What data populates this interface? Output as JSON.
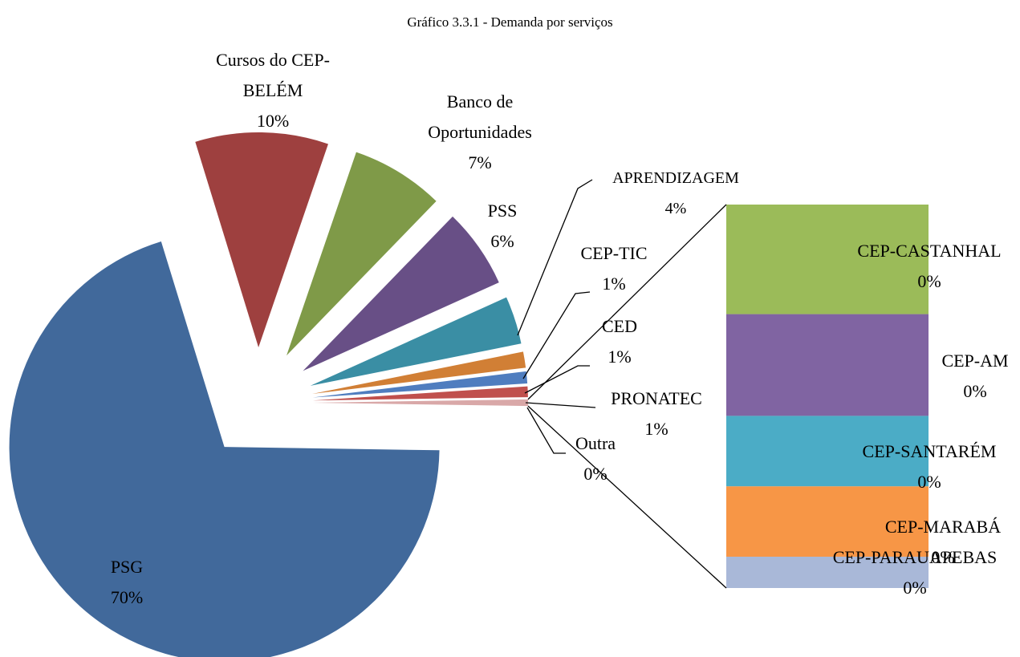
{
  "chart_data": {
    "type": "pie-of-bar",
    "title": "Gráfico 3.3.1 - Demanda por serviços",
    "categories": [
      "PSG",
      "Cursos do CEP-BELÉM",
      "Banco de Oportunidades",
      "PSS",
      "APRENDIZAGEM",
      "CEP-TIC",
      "CED",
      "PRONATEC",
      "Outra"
    ],
    "values": [
      70.0,
      10.0,
      7.0,
      6.0,
      3.6,
      1.2,
      0.9,
      0.8,
      0.49
    ],
    "value_labels": [
      "70%",
      "10%",
      "7%",
      "6%",
      "4%",
      "1%",
      "1%",
      "1%",
      "0%"
    ],
    "colors": [
      "#41699b",
      "#9e403f",
      "#7f9a48",
      "#684f86",
      "#3a8ea4",
      "#d17f35",
      "#4f7dbf",
      "#c0504d",
      "#d9a8a8"
    ],
    "bar": {
      "categories": [
        "CEP-CASTANHAL",
        "CEP-AM",
        "CEP-SANTARÉM",
        "CEP-MARABÁ",
        "CEP-PARAUAPEBAS"
      ],
      "values": [
        0.14,
        0.13,
        0.09,
        0.09,
        0.04
      ],
      "value_labels": [
        "0%",
        "0%",
        "0%",
        "0%",
        "0%"
      ],
      "colors": [
        "#9bbb59",
        "#8064a2",
        "#4bacc6",
        "#f79646",
        "#a9b8d8"
      ]
    }
  }
}
